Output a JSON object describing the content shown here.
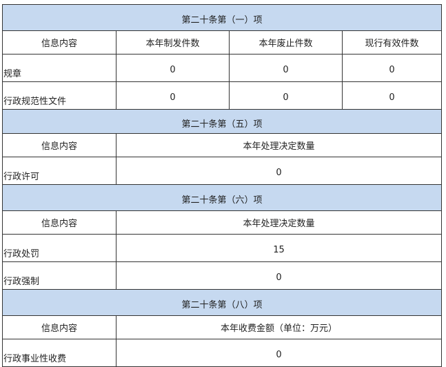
{
  "sections": [
    {
      "title": "第二十条第（一）项",
      "headers": [
        "信息内容",
        "本年制发件数",
        "本年废止件数",
        "现行有效件数"
      ],
      "rows": [
        {
          "label": "规章",
          "values": [
            "0",
            "0",
            "0"
          ]
        },
        {
          "label": "行政规范性文件",
          "values": [
            "0",
            "0",
            "0"
          ]
        }
      ]
    },
    {
      "title": "第二十条第（五）项",
      "headers": [
        "信息内容",
        "本年处理决定数量"
      ],
      "rows": [
        {
          "label": "行政许可",
          "values": [
            "0"
          ]
        }
      ]
    },
    {
      "title": "第二十条第（六）项",
      "headers": [
        "信息内容",
        "本年处理决定数量"
      ],
      "rows": [
        {
          "label": "行政处罚",
          "values": [
            "15"
          ]
        },
        {
          "label": "行政强制",
          "values": [
            "0"
          ]
        }
      ]
    },
    {
      "title": "第二十条第（八）项",
      "headers": [
        "信息内容",
        "本年收费金额（单位：万元）"
      ],
      "rows": [
        {
          "label": "行政事业性收费",
          "values": [
            "0"
          ]
        }
      ]
    }
  ],
  "colors": {
    "section_header_bg": "#c6d9f0",
    "border": "#333333"
  }
}
